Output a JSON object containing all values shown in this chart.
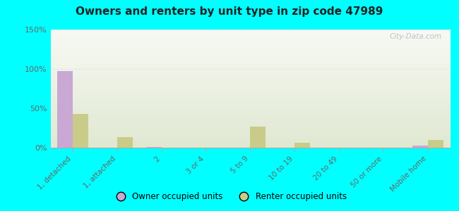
{
  "title": "Owners and renters by unit type in zip code 47989",
  "categories": [
    "1, detached",
    "1, attached",
    "2",
    "3 or 4",
    "5 to 9",
    "10 to 19",
    "20 to 49",
    "50 or more",
    "Mobile home"
  ],
  "owner_values": [
    97,
    0,
    1,
    0,
    0,
    0,
    0,
    0,
    3
  ],
  "renter_values": [
    43,
    13,
    0,
    0,
    27,
    6,
    0,
    0,
    10
  ],
  "owner_color": "#c9a8d4",
  "renter_color": "#c8cc88",
  "ylim": [
    0,
    150
  ],
  "yticks": [
    0,
    50,
    100,
    150
  ],
  "ytick_labels": [
    "0%",
    "50%",
    "100%",
    "150%"
  ],
  "outer_bg": "#00ffff",
  "legend_owner": "Owner occupied units",
  "legend_renter": "Renter occupied units",
  "watermark": "City-Data.com",
  "bar_width": 0.35,
  "grid_color": "#e8e8e8"
}
